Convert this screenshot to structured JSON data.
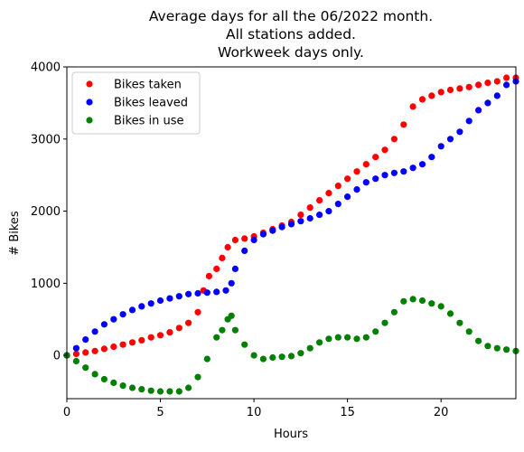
{
  "chart_data": {
    "type": "scatter",
    "title": [
      "Average days for all the 06/2022 month.",
      "All stations added.",
      "Workweek days only."
    ],
    "xlabel": "Hours",
    "ylabel": "# Bikes",
    "xlim": [
      0,
      24
    ],
    "ylim": [
      -600,
      4000
    ],
    "xticks": [
      0,
      5,
      10,
      15,
      20
    ],
    "yticks": [
      0,
      1000,
      2000,
      3000,
      4000
    ],
    "grid": false,
    "legend_position": "top-left",
    "series": [
      {
        "name": "Bikes taken",
        "color": "#ff0000",
        "x": [
          0,
          0.5,
          1,
          1.5,
          2,
          2.5,
          3,
          3.5,
          4,
          4.5,
          5,
          5.5,
          6,
          6.5,
          7,
          7.3,
          7.6,
          8,
          8.3,
          8.6,
          9,
          9.5,
          10,
          10.5,
          11,
          11.5,
          12,
          12.5,
          13,
          13.5,
          14,
          14.5,
          15,
          15.5,
          16,
          16.5,
          17,
          17.5,
          18,
          18.5,
          19,
          19.5,
          20,
          20.5,
          21,
          21.5,
          22,
          22.5,
          23,
          23.5,
          24
        ],
        "y": [
          0,
          20,
          40,
          60,
          90,
          120,
          150,
          180,
          210,
          250,
          280,
          320,
          380,
          450,
          600,
          900,
          1100,
          1200,
          1350,
          1500,
          1600,
          1620,
          1650,
          1700,
          1750,
          1800,
          1850,
          1950,
          2050,
          2150,
          2250,
          2350,
          2450,
          2550,
          2650,
          2750,
          2850,
          3000,
          3200,
          3450,
          3550,
          3600,
          3650,
          3680,
          3700,
          3720,
          3750,
          3780,
          3800,
          3850,
          3850
        ]
      },
      {
        "name": "Bikes leaved",
        "color": "#0000ff",
        "x": [
          0,
          0.5,
          1,
          1.5,
          2,
          2.5,
          3,
          3.5,
          4,
          4.5,
          5,
          5.5,
          6,
          6.5,
          7,
          7.5,
          8,
          8.5,
          8.8,
          9,
          9.5,
          10,
          10.5,
          11,
          11.5,
          12,
          12.5,
          13,
          13.5,
          14,
          14.5,
          15,
          15.5,
          16,
          16.5,
          17,
          17.5,
          18,
          18.5,
          19,
          19.5,
          20,
          20.5,
          21,
          21.5,
          22,
          22.5,
          23,
          23.5,
          24
        ],
        "y": [
          0,
          100,
          220,
          330,
          430,
          500,
          570,
          630,
          680,
          720,
          760,
          790,
          820,
          850,
          860,
          870,
          880,
          900,
          1000,
          1200,
          1450,
          1600,
          1680,
          1730,
          1780,
          1820,
          1860,
          1900,
          1950,
          2000,
          2100,
          2200,
          2300,
          2400,
          2450,
          2500,
          2530,
          2550,
          2600,
          2650,
          2750,
          2900,
          3000,
          3100,
          3250,
          3400,
          3500,
          3600,
          3750,
          3800
        ]
      },
      {
        "name": "Bikes in use",
        "color": "#008000",
        "x": [
          0,
          0.5,
          1,
          1.5,
          2,
          2.5,
          3,
          3.5,
          4,
          4.5,
          5,
          5.5,
          6,
          6.5,
          7,
          7.5,
          8,
          8.3,
          8.6,
          8.8,
          9,
          9.5,
          10,
          10.5,
          11,
          11.5,
          12,
          12.5,
          13,
          13.5,
          14,
          14.5,
          15,
          15.5,
          16,
          16.5,
          17,
          17.5,
          18,
          18.5,
          19,
          19.5,
          20,
          20.5,
          21,
          21.5,
          22,
          22.5,
          23,
          23.5,
          24
        ],
        "y": [
          0,
          -80,
          -170,
          -260,
          -330,
          -380,
          -420,
          -450,
          -470,
          -490,
          -500,
          -500,
          -500,
          -450,
          -300,
          -50,
          250,
          350,
          500,
          550,
          350,
          150,
          0,
          -50,
          -30,
          -20,
          -10,
          30,
          100,
          180,
          230,
          250,
          250,
          230,
          250,
          330,
          450,
          600,
          750,
          780,
          760,
          720,
          680,
          580,
          450,
          330,
          200,
          130,
          100,
          80,
          60
        ]
      }
    ]
  }
}
